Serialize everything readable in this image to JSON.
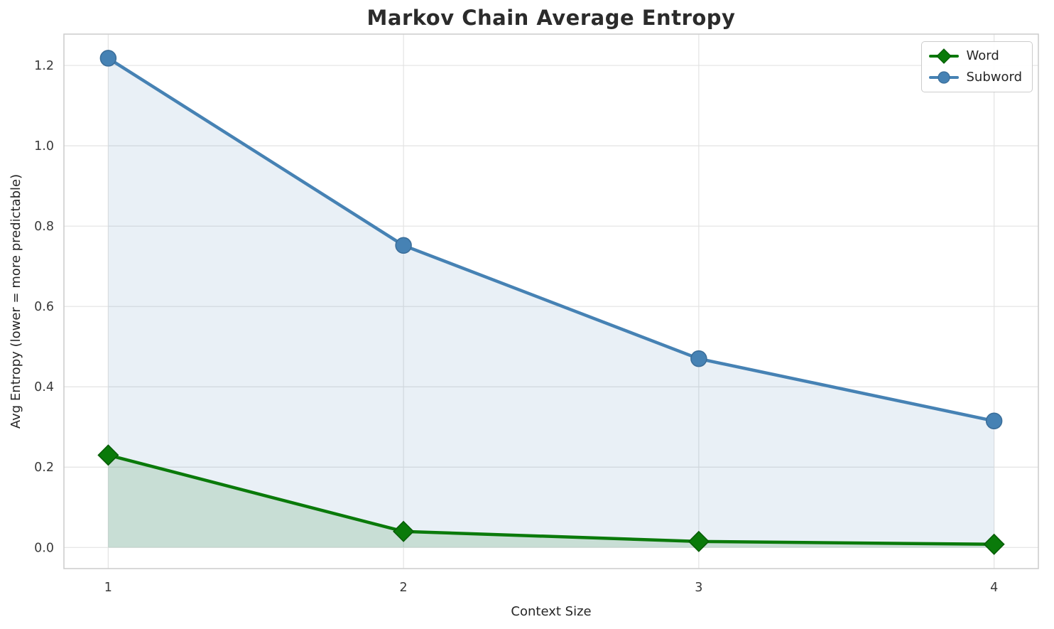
{
  "chart_data": {
    "type": "line",
    "title": "Markov Chain Average Entropy",
    "xlabel": "Context Size",
    "ylabel": "Avg Entropy (lower = more predictable)",
    "x": [
      1,
      2,
      3,
      4
    ],
    "series": [
      {
        "name": "Word",
        "color": "#0a7a0a",
        "edge_color": "#075c07",
        "marker": "diamond",
        "values": [
          0.23,
          0.04,
          0.015,
          0.008
        ],
        "fill_to_zero": true,
        "fill_opacity": 0.15
      },
      {
        "name": "Subword",
        "color": "#4682b4",
        "edge_color": "#3a6d99",
        "marker": "circle",
        "values": [
          1.218,
          0.752,
          0.47,
          0.315
        ],
        "fill_to_zero": true,
        "fill_opacity": 0.12
      }
    ],
    "xlim": [
      0.85,
      4.15
    ],
    "ylim": [
      -0.0525,
      1.278
    ],
    "xticks": [
      1,
      2,
      3,
      4
    ],
    "xticklabels": [
      "1",
      "2",
      "3",
      "4"
    ],
    "yticks": [
      0.0,
      0.2,
      0.4,
      0.6,
      0.8,
      1.0,
      1.2
    ],
    "yticklabels": [
      "0.0",
      "0.2",
      "0.4",
      "0.6",
      "0.8",
      "1.0",
      "1.2"
    ],
    "grid": true,
    "grid_color": "#e3e3e3",
    "frame_color": "#cccccc",
    "tick_label_color": "#3a3a3a",
    "axis_label_color": "#262626",
    "legend_position": "upper right"
  }
}
